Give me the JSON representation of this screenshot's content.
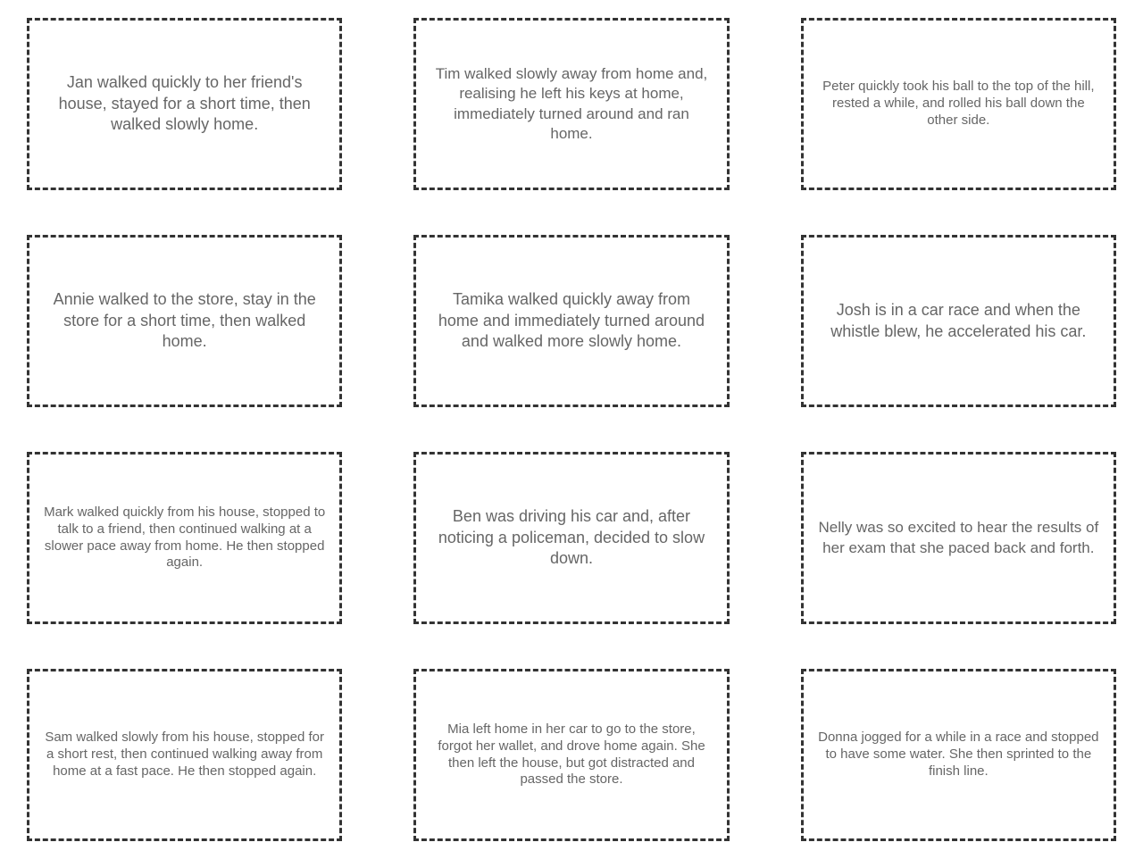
{
  "layout": {
    "columns": 3,
    "rows": 4,
    "background_color": "#ffffff",
    "border_color": "#333333",
    "text_color": "#666666",
    "border_style": "dashed",
    "font_family": "Comic Sans MS"
  },
  "cards": [
    {
      "text": "Jan walked quickly to her friend's house, stayed for a short time, then walked slowly home.",
      "size": "normal"
    },
    {
      "text": "Tim walked slowly away from home and, realising he left his keys at home, immediately turned around and ran home.",
      "size": "medium"
    },
    {
      "text": "Peter quickly took his ball to the top of the hill, rested a while, and rolled his ball down the other side.",
      "size": "small"
    },
    {
      "text": "Annie walked to the store, stay in the store for a short time, then walked home.",
      "size": "normal"
    },
    {
      "text": "Tamika walked quickly away from home and immediately turned around and walked more slowly home.",
      "size": "normal"
    },
    {
      "text": "Josh is in a car race and when the whistle blew, he accelerated his car.",
      "size": "normal"
    },
    {
      "text": "Mark walked quickly from his house, stopped to talk to a friend, then continued walking at a slower pace away from home. He then stopped again.",
      "size": "small"
    },
    {
      "text": "Ben was driving his car and, after noticing a policeman, decided to slow down.",
      "size": "normal"
    },
    {
      "text": "Nelly was so excited to hear the results of her exam that she paced back and forth.",
      "size": "medium"
    },
    {
      "text": "Sam walked slowly from his house, stopped for a short rest, then continued walking away from home at a fast pace. He then stopped again.",
      "size": "small"
    },
    {
      "text": "Mia left home in her car to go to the store, forgot her wallet, and drove home again. She then left the house, but got distracted and passed the store.",
      "size": "small"
    },
    {
      "text": "Donna jogged for a while in a race and stopped to have some water. She then sprinted to the finish line.",
      "size": "small"
    }
  ]
}
